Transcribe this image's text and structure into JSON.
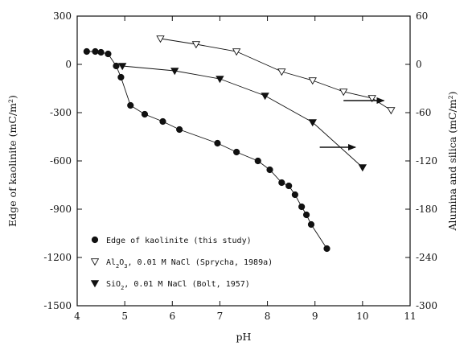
{
  "chart_data": {
    "type": "line",
    "xlabel": "pH",
    "ylabel": "Edge of kaolinite (mC/m²)",
    "ylabel_right": "Alumina and silica (mC/m²)",
    "xlim": [
      4,
      11
    ],
    "ylim": [
      -1500,
      300
    ],
    "ylim_right": [
      -300,
      60
    ],
    "x_ticks": [
      "4",
      "5",
      "6",
      "7",
      "8",
      "9",
      "10",
      "11"
    ],
    "y_ticks": [
      "300",
      "0",
      "-300",
      "-600",
      "-900",
      "-1200",
      "-1500"
    ],
    "y_ticks_right": [
      "60",
      "0",
      "-60",
      "-120",
      "-180",
      "-240",
      "-300"
    ],
    "grid": false,
    "legend_position": "bottom-left",
    "series": [
      {
        "name": "Edge of kaolinite (this study)",
        "marker": "filled-circle",
        "axis": "left",
        "x": [
          4.2,
          4.38,
          4.5,
          4.65,
          4.82,
          4.92,
          5.12,
          5.42,
          5.8,
          6.15,
          6.95,
          7.35,
          7.8,
          8.05,
          8.3,
          8.45,
          8.58,
          8.72,
          8.82,
          8.92,
          9.25
        ],
        "y": [
          80,
          80,
          75,
          65,
          -10,
          -80,
          -255,
          -310,
          -355,
          -405,
          -490,
          -545,
          -600,
          -655,
          -735,
          -755,
          -810,
          -885,
          -935,
          -995,
          -1145
        ]
      },
      {
        "name": "Al₂O₃, 0.01 M NaCl (Sprycha, 1989a)",
        "marker": "open-down-triangle",
        "axis": "right",
        "x": [
          5.75,
          6.5,
          7.35,
          8.3,
          8.95,
          9.6,
          10.2,
          10.6
        ],
        "y": [
          32,
          25,
          16,
          -9,
          -20,
          -34,
          -42,
          -57
        ]
      },
      {
        "name": "SiO₂, 0.01 M NaCl (Bolt, 1957)",
        "marker": "filled-down-triangle",
        "axis": "right",
        "x": [
          4.95,
          6.05,
          7.0,
          7.95,
          8.95,
          10.0
        ],
        "y": [
          -2,
          -8,
          -18,
          -39,
          -72,
          -128
        ]
      }
    ],
    "legend": {
      "entries": [
        {
          "marker": "filled-circle",
          "parts": [
            "Edge of kaolinite (this study)"
          ]
        },
        {
          "marker": "open-down-triangle",
          "parts": [
            "Al",
            "2",
            "O",
            "3",
            ", 0.01 M NaCl (Sprycha, 1989a)"
          ]
        },
        {
          "marker": "filled-down-triangle",
          "parts": [
            "SiO",
            "2",
            ", 0.01 M NaCl (Bolt, 1957)"
          ]
        }
      ]
    },
    "annotations": [
      {
        "type": "arrow",
        "direction": "right",
        "axis": "right",
        "x_from": 9.6,
        "x_to": 10.45,
        "y": -45
      },
      {
        "type": "arrow",
        "direction": "right",
        "axis": "right",
        "x_from": 9.1,
        "x_to": 9.85,
        "y": -103
      }
    ]
  }
}
